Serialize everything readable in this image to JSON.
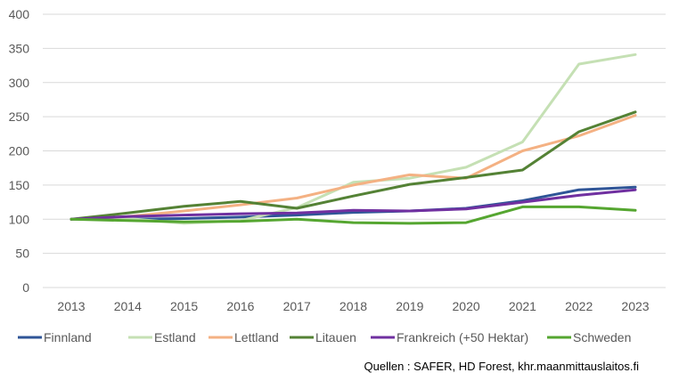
{
  "chart_data": {
    "type": "line",
    "title": "",
    "xlabel": "",
    "ylabel": "",
    "categories": [
      "2013",
      "2014",
      "2015",
      "2016",
      "2017",
      "2018",
      "2019",
      "2020",
      "2021",
      "2022",
      "2023"
    ],
    "ylim": [
      0,
      400
    ],
    "yticks": [
      0,
      50,
      100,
      150,
      200,
      250,
      300,
      350,
      400
    ],
    "grid": "horizontal",
    "legend_position": "bottom",
    "series": [
      {
        "name": "Finnland",
        "color": "#2F5597",
        "values": [
          100,
          100,
          101,
          103,
          106,
          110,
          112,
          116,
          127,
          143,
          147
        ]
      },
      {
        "name": "Estland",
        "color": "#C5E0B4",
        "values": [
          100,
          101,
          94,
          98,
          117,
          154,
          160,
          176,
          213,
          327,
          341
        ]
      },
      {
        "name": "Lettland",
        "color": "#F4B183",
        "values": [
          100,
          104,
          112,
          121,
          131,
          150,
          165,
          160,
          200,
          222,
          252
        ]
      },
      {
        "name": "Litauen",
        "color": "#548235",
        "values": [
          100,
          109,
          119,
          126,
          116,
          134,
          151,
          161,
          172,
          228,
          257
        ]
      },
      {
        "name": "Frankreich (+50 Hektar)",
        "color": "#7030A0",
        "values": [
          100,
          104,
          106,
          108,
          109,
          113,
          112,
          115,
          125,
          135,
          143
        ]
      },
      {
        "name": "Schweden",
        "color": "#55A630",
        "values": [
          100,
          98,
          96,
          97,
          100,
          95,
          94,
          95,
          118,
          118,
          113
        ]
      }
    ]
  },
  "source_note": "Quellen : SAFER, HD Forest, khr.maanmittauslaitos.fi"
}
